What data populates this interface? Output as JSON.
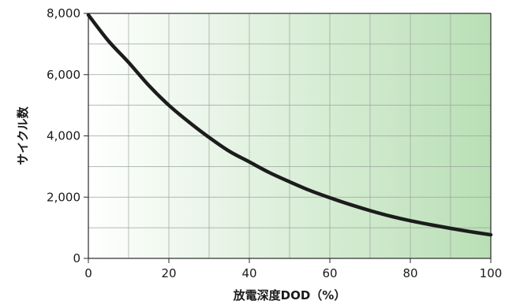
{
  "chart_data": {
    "type": "line",
    "title": "",
    "xlabel": "放電深度DOD（%）",
    "ylabel": "サイクル数",
    "xlim": [
      0,
      100
    ],
    "ylim": [
      0,
      8000
    ],
    "x_ticks": [
      "0",
      "20",
      "40",
      "60",
      "80",
      "100"
    ],
    "y_ticks": [
      "0",
      "2,000",
      "4,000",
      "6,000",
      "8,000"
    ],
    "grid": true,
    "background_gradient": [
      "#ffffff",
      "#b9dfb5"
    ],
    "line_color": "#1c1c1c",
    "series": [
      {
        "name": "",
        "x": [
          0,
          5,
          10,
          15,
          20,
          25,
          30,
          35,
          40,
          45,
          50,
          55,
          60,
          65,
          70,
          75,
          80,
          85,
          90,
          95,
          100
        ],
        "y": [
          7950,
          7100,
          6400,
          5650,
          5000,
          4450,
          3950,
          3500,
          3150,
          2800,
          2500,
          2220,
          1980,
          1760,
          1560,
          1380,
          1230,
          1100,
          980,
          870,
          770
        ]
      }
    ]
  }
}
